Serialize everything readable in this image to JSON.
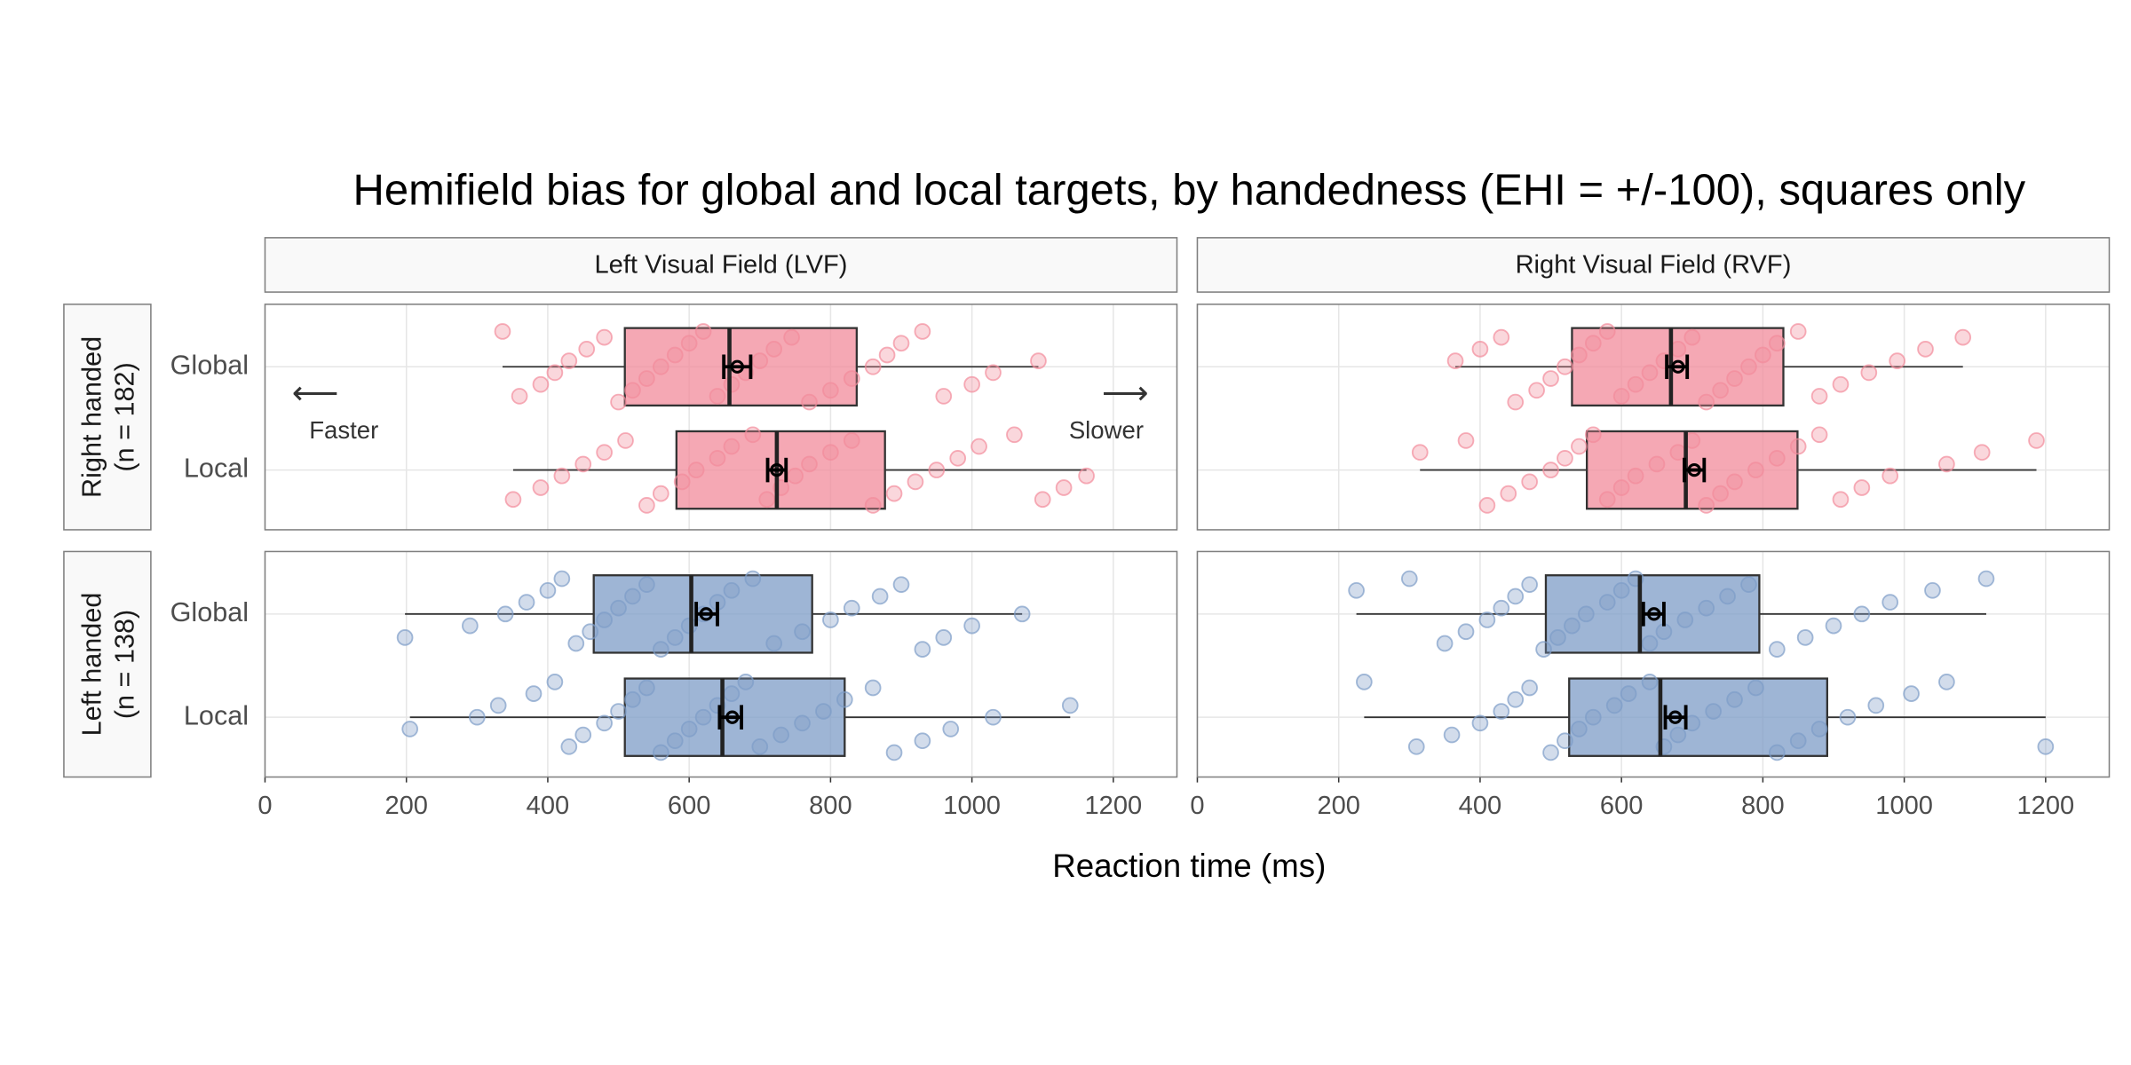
{
  "title": "Hemifield bias for global and local targets, by handedness (EHI = +/-100), squares only",
  "x_label": "Reaction time (ms)",
  "facet_columns": [
    "Left Visual Field (LVF)",
    "Right Visual Field (RVF)"
  ],
  "facet_rows": [
    [
      "Right handed",
      "(n = 182)"
    ],
    [
      "Left handed",
      "(n = 138)"
    ]
  ],
  "categories": [
    "Global",
    "Local"
  ],
  "xlim": [
    0,
    1290
  ],
  "xticks": [
    0,
    200,
    400,
    600,
    800,
    1000,
    1200
  ],
  "chart_data": [
    {
      "type": "box",
      "color": "#f28b9b",
      "annotations": [
        "⟵",
        "Faster",
        "⟶",
        "Slower"
      ],
      "boxes": [
        {
          "min": 336,
          "q1": 509,
          "median": 657,
          "q3": 837,
          "max": 1094,
          "mean": 668,
          "ci": [
            649,
            687
          ],
          "points": [
            336,
            360,
            390,
            410,
            430,
            455,
            480,
            500,
            520,
            540,
            560,
            580,
            600,
            620,
            640,
            660,
            680,
            700,
            720,
            745,
            770,
            800,
            830,
            860,
            880,
            900,
            930,
            960,
            1000,
            1030,
            1094
          ]
        },
        {
          "min": 351,
          "q1": 582,
          "median": 724,
          "q3": 877,
          "max": 1162,
          "mean": 724,
          "ci": [
            711,
            737
          ],
          "points": [
            351,
            390,
            420,
            450,
            480,
            510,
            540,
            560,
            590,
            610,
            640,
            660,
            690,
            710,
            730,
            750,
            770,
            800,
            830,
            860,
            890,
            920,
            950,
            980,
            1010,
            1060,
            1100,
            1130,
            1162
          ]
        }
      ]
    },
    {
      "type": "box",
      "color": "#f28b9b",
      "boxes": [
        {
          "min": 365,
          "q1": 530,
          "median": 670,
          "q3": 829,
          "max": 1083,
          "mean": 680,
          "ci": [
            664,
            693
          ],
          "points": [
            365,
            400,
            430,
            450,
            480,
            500,
            520,
            540,
            560,
            580,
            600,
            620,
            640,
            660,
            680,
            700,
            720,
            740,
            760,
            780,
            800,
            820,
            850,
            880,
            910,
            950,
            990,
            1030,
            1083
          ]
        },
        {
          "min": 315,
          "q1": 551,
          "median": 691,
          "q3": 849,
          "max": 1187,
          "mean": 703,
          "ci": [
            689,
            717
          ],
          "points": [
            315,
            380,
            410,
            440,
            470,
            500,
            520,
            540,
            560,
            580,
            600,
            620,
            650,
            680,
            700,
            720,
            740,
            760,
            790,
            820,
            850,
            880,
            910,
            940,
            980,
            1060,
            1110,
            1187
          ]
        }
      ]
    },
    {
      "type": "box",
      "color": "#7d9cc7",
      "boxes": [
        {
          "min": 198,
          "q1": 465,
          "median": 603,
          "q3": 774,
          "max": 1071,
          "mean": 624,
          "ci": [
            610,
            640
          ],
          "points": [
            198,
            290,
            340,
            370,
            400,
            420,
            440,
            460,
            480,
            500,
            520,
            540,
            560,
            580,
            600,
            620,
            640,
            660,
            690,
            720,
            760,
            800,
            830,
            870,
            900,
            930,
            960,
            1000,
            1071
          ]
        },
        {
          "min": 205,
          "q1": 509,
          "median": 647,
          "q3": 820,
          "max": 1139,
          "mean": 661,
          "ci": [
            643,
            674
          ],
          "points": [
            205,
            300,
            330,
            380,
            410,
            430,
            450,
            480,
            500,
            520,
            540,
            560,
            580,
            600,
            620,
            640,
            660,
            680,
            700,
            730,
            760,
            790,
            820,
            860,
            890,
            930,
            970,
            1030,
            1139
          ]
        }
      ]
    },
    {
      "type": "box",
      "color": "#7d9cc7",
      "boxes": [
        {
          "min": 225,
          "q1": 493,
          "median": 626,
          "q3": 795,
          "max": 1116,
          "mean": 646,
          "ci": [
            631,
            660
          ],
          "points": [
            225,
            300,
            350,
            380,
            410,
            430,
            450,
            470,
            490,
            510,
            530,
            550,
            580,
            600,
            620,
            640,
            660,
            690,
            720,
            750,
            780,
            820,
            860,
            900,
            940,
            980,
            1040,
            1116
          ]
        },
        {
          "min": 236,
          "q1": 526,
          "median": 655,
          "q3": 891,
          "max": 1200,
          "mean": 676,
          "ci": [
            662,
            691
          ],
          "points": [
            236,
            310,
            360,
            400,
            430,
            450,
            470,
            500,
            520,
            540,
            560,
            590,
            610,
            640,
            660,
            680,
            700,
            730,
            760,
            790,
            820,
            850,
            880,
            920,
            960,
            1010,
            1060,
            1200
          ]
        }
      ]
    }
  ]
}
